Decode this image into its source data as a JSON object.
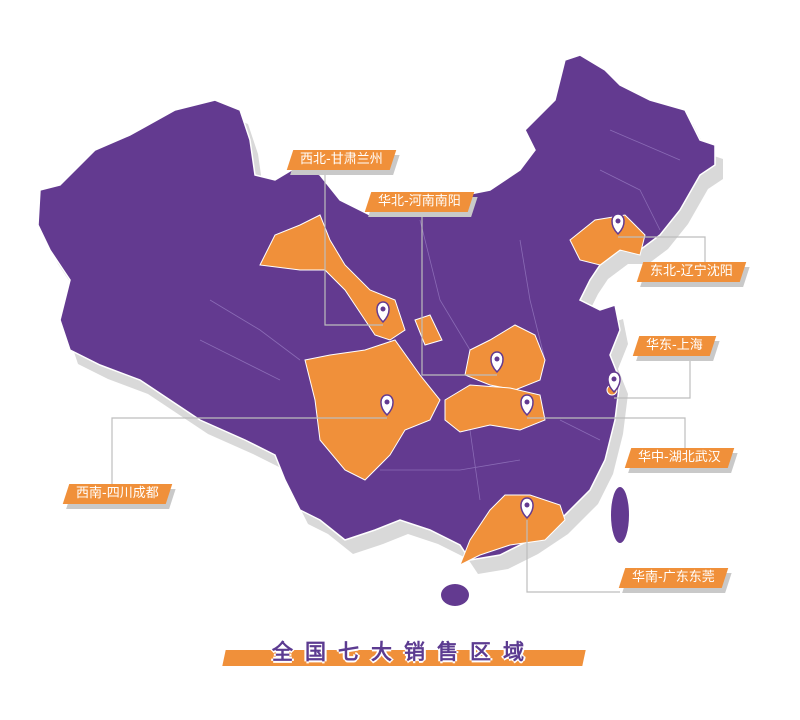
{
  "title": "全国七大销售区域",
  "colors": {
    "map": "#633a90",
    "highlight": "#f0903a",
    "shadow": "#d9d9d9",
    "line": "#bdbdbd"
  },
  "regions": [
    {
      "label": "西北-甘肃兰州",
      "province": "甘肃"
    },
    {
      "label": "华北-河南南阳",
      "province": "河南"
    },
    {
      "label": "东北-辽宁沈阳",
      "province": "辽宁"
    },
    {
      "label": "华东-上海",
      "province": "上海"
    },
    {
      "label": "华中-湖北武汉",
      "province": "湖北"
    },
    {
      "label": "西南-四川成都",
      "province": "四川"
    },
    {
      "label": "华南-广东东莞",
      "province": "广东"
    }
  ],
  "icons": {
    "pin": "map-pin-icon"
  }
}
